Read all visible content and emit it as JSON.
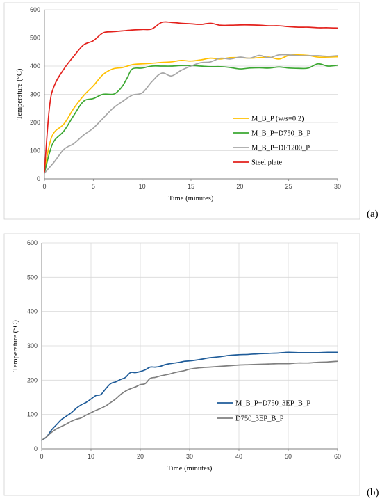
{
  "chart_data": [
    {
      "type": "line",
      "panel_label": "(a)",
      "xlabel": "Time (minutes)",
      "ylabel": "Temperature (°C)",
      "xlim": [
        0,
        30
      ],
      "ylim": [
        0,
        600
      ],
      "xticks": [
        0,
        5,
        10,
        15,
        20,
        25,
        30
      ],
      "yticks": [
        0,
        100,
        200,
        300,
        400,
        500,
        600
      ],
      "grid": "horizontal",
      "legend": "right-center",
      "series": [
        {
          "name": "M_B_P (w/s=0.2)",
          "color": "#FFC000",
          "x": [
            0,
            0.5,
            1,
            2,
            3,
            4,
            5,
            6,
            7,
            8,
            9,
            10,
            11,
            12,
            13,
            14,
            15,
            16,
            17,
            18,
            19,
            20,
            21,
            22,
            23,
            24,
            25,
            26,
            27,
            28,
            29,
            30
          ],
          "y": [
            25,
            120,
            165,
            195,
            250,
            295,
            330,
            370,
            390,
            395,
            405,
            408,
            410,
            413,
            415,
            420,
            418,
            422,
            428,
            425,
            430,
            430,
            428,
            430,
            432,
            425,
            438,
            440,
            438,
            432,
            432,
            433
          ]
        },
        {
          "name": "M_B_P+D750_B_P",
          "color": "#3CA832",
          "x": [
            0,
            0.5,
            1,
            2,
            3,
            4,
            5,
            6,
            7,
            7.5,
            8,
            8.5,
            9,
            10,
            11,
            12,
            13,
            14,
            15,
            16,
            17,
            18,
            19,
            20,
            21,
            22,
            23,
            24,
            25,
            26,
            27,
            28,
            29,
            30
          ],
          "y": [
            20,
            90,
            135,
            170,
            225,
            275,
            285,
            300,
            300,
            310,
            330,
            360,
            390,
            393,
            400,
            400,
            400,
            402,
            402,
            400,
            398,
            398,
            395,
            390,
            393,
            394,
            393,
            397,
            393,
            392,
            393,
            408,
            400,
            403
          ]
        },
        {
          "name": "M_B_P+DF1200_P",
          "color": "#A6A6A6",
          "x": [
            0,
            0.5,
            1,
            2,
            3,
            4,
            5,
            6,
            7,
            8,
            9,
            10,
            11,
            12,
            13,
            14,
            15,
            16,
            17,
            18,
            19,
            20,
            21,
            22,
            23,
            24,
            25,
            26,
            27,
            28,
            29,
            30
          ],
          "y": [
            20,
            40,
            60,
            105,
            125,
            155,
            180,
            215,
            250,
            275,
            297,
            305,
            345,
            375,
            365,
            385,
            400,
            412,
            415,
            428,
            425,
            432,
            428,
            438,
            430,
            440,
            440,
            437,
            437,
            437,
            435,
            437
          ]
        },
        {
          "name": "Steel plate",
          "color": "#E3211C",
          "x": [
            0,
            0.5,
            1,
            2,
            3,
            4,
            5,
            6,
            7,
            8,
            9,
            10,
            11,
            12,
            13,
            14,
            15,
            16,
            17,
            18,
            19,
            20,
            21,
            22,
            23,
            24,
            25,
            26,
            27,
            28,
            29,
            30
          ],
          "y": [
            25,
            250,
            330,
            390,
            435,
            475,
            490,
            518,
            522,
            525,
            528,
            530,
            532,
            555,
            555,
            552,
            550,
            548,
            552,
            545,
            545,
            546,
            546,
            545,
            543,
            543,
            540,
            538,
            538,
            536,
            536,
            535
          ]
        }
      ]
    },
    {
      "type": "line",
      "panel_label": "(b)",
      "xlabel": "Time (minutes)",
      "ylabel": "Temperature (°C)",
      "xlim": [
        0,
        60
      ],
      "ylim": [
        0,
        600
      ],
      "xticks": [
        0,
        10,
        20,
        30,
        40,
        50,
        60
      ],
      "yticks": [
        0,
        100,
        200,
        300,
        400,
        500,
        600
      ],
      "grid": "both",
      "legend": "right-center",
      "series": [
        {
          "name": "M_B_P+D750_3EP_B_P",
          "color": "#1F5C99",
          "x": [
            0,
            1,
            2,
            3,
            4,
            5,
            6,
            7,
            8,
            9,
            10,
            11,
            12,
            13,
            14,
            15,
            16,
            17,
            18,
            19,
            20,
            21,
            22,
            23,
            24,
            25,
            26,
            27,
            28,
            29,
            30,
            32,
            34,
            36,
            38,
            40,
            42,
            44,
            46,
            48,
            50,
            52,
            54,
            56,
            58,
            60
          ],
          "y": [
            25,
            35,
            55,
            70,
            85,
            95,
            105,
            118,
            128,
            135,
            145,
            155,
            158,
            175,
            190,
            195,
            202,
            208,
            222,
            222,
            225,
            230,
            238,
            238,
            240,
            245,
            248,
            250,
            252,
            255,
            256,
            260,
            265,
            268,
            272,
            274,
            275,
            277,
            278,
            279,
            281,
            280,
            280,
            280,
            281,
            281
          ]
        },
        {
          "name": "D750_3EP_B_P",
          "color": "#7F7F7F",
          "x": [
            0,
            1,
            2,
            3,
            4,
            5,
            6,
            7,
            8,
            9,
            10,
            11,
            12,
            13,
            14,
            15,
            16,
            17,
            18,
            19,
            20,
            21,
            22,
            23,
            24,
            25,
            26,
            27,
            28,
            29,
            30,
            32,
            34,
            36,
            38,
            40,
            42,
            44,
            46,
            48,
            50,
            52,
            54,
            56,
            58,
            60
          ],
          "y": [
            25,
            35,
            48,
            58,
            65,
            72,
            80,
            86,
            90,
            98,
            105,
            112,
            118,
            125,
            135,
            145,
            158,
            168,
            175,
            180,
            187,
            190,
            205,
            208,
            212,
            215,
            218,
            222,
            225,
            228,
            232,
            236,
            238,
            240,
            242,
            244,
            245,
            246,
            247,
            248,
            248,
            250,
            250,
            252,
            253,
            255
          ]
        }
      ]
    }
  ]
}
